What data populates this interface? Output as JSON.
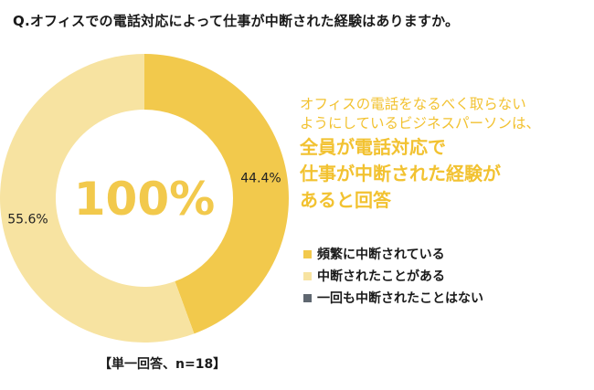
{
  "question": "Q.オフィスでの電話対応によって仕事が中断された経験はありますか。",
  "chart_data": {
    "type": "pie",
    "categories": [
      "頻繁に中断されている",
      "中断されたことがある",
      "一回も中断されたことはない"
    ],
    "values": [
      44.4,
      55.6,
      0
    ],
    "value_labels": [
      "44.4%",
      "55.6%",
      ""
    ],
    "colors": [
      "#f2c94c",
      "#f7e3a1",
      "#5f6770"
    ],
    "center_label": "100%",
    "legend": "right"
  },
  "callout": {
    "line1": "オフィスの電話をなるべく取らない",
    "line2": "ようにしているビジネスパーソンは、",
    "line3": "全員が電話対応で",
    "line4": "仕事が中断された経験が",
    "line5": "あると回答"
  },
  "footnote": "【単一回答、n=18】"
}
